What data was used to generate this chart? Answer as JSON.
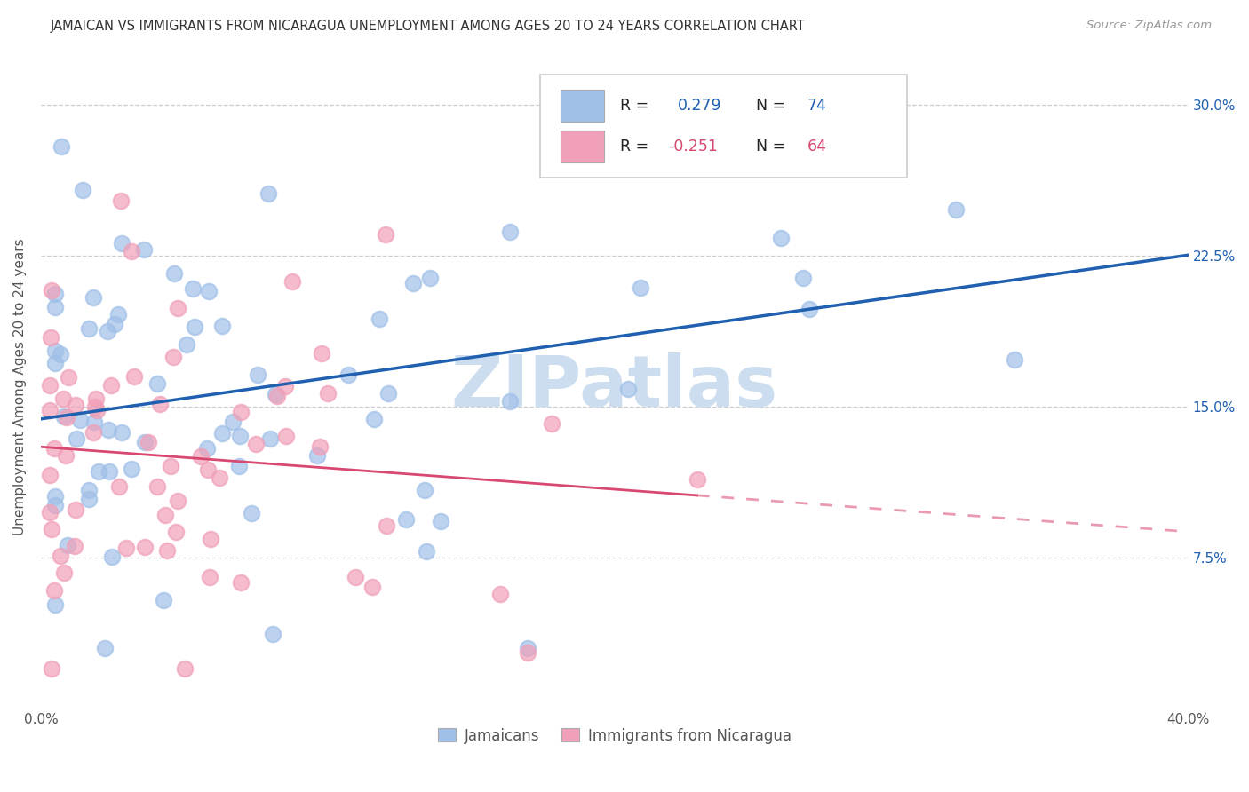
{
  "title": "JAMAICAN VS IMMIGRANTS FROM NICARAGUA UNEMPLOYMENT AMONG AGES 20 TO 24 YEARS CORRELATION CHART",
  "source": "Source: ZipAtlas.com",
  "ylabel": "Unemployment Among Ages 20 to 24 years",
  "xlim": [
    0.0,
    0.4
  ],
  "ylim": [
    0.0,
    0.32
  ],
  "blue_color": "#a0c0e8",
  "pink_color": "#f0a0b8",
  "blue_line_color": "#2060b0",
  "pink_line_color": "#d84870",
  "blue_label_color": "#2060b0",
  "pink_label_color": "#d84870",
  "grid_color": "#cccccc",
  "watermark": "ZIPatlas",
  "watermark_color": "#ccddf0",
  "r_jam": 0.279,
  "n_jam": 74,
  "r_nic": -0.251,
  "n_nic": 64
}
